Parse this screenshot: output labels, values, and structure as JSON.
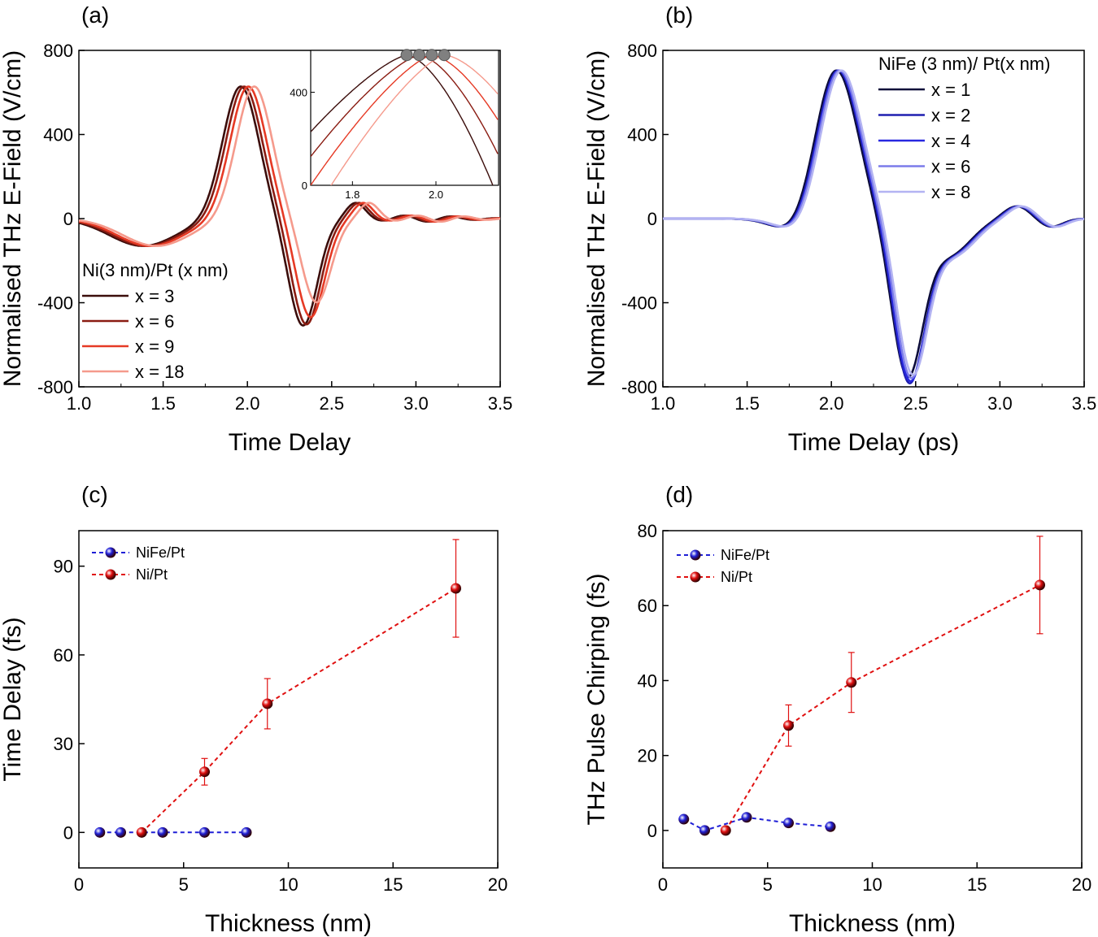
{
  "figure": {
    "panels": [
      "(a)",
      "(b)",
      "(c)",
      "(d)"
    ]
  },
  "chart_data": [
    {
      "id": "a",
      "type": "line",
      "panel_label": "(a)",
      "xlabel": "Time Delay",
      "ylabel": "Normalised THz E-Field (V/cm)",
      "xlim": [
        1.0,
        3.5
      ],
      "ylim": [
        -800,
        800
      ],
      "xticks": [
        "1.0",
        "1.5",
        "2.0",
        "2.5",
        "3.0",
        "3.5"
      ],
      "yticks": [
        "-800",
        "-400",
        "0",
        "400",
        "800"
      ],
      "legend_title": "Ni(3 nm)/Pt (x nm)",
      "legend_position": "bottom-left",
      "series": [
        {
          "name": "x = 3",
          "color": "#3b0d0b",
          "shift": 0.0,
          "peak": 600,
          "trough": -510
        },
        {
          "name": "x = 6",
          "color": "#8a1c12",
          "shift": 0.02,
          "peak": 600,
          "trough": -505
        },
        {
          "name": "x = 9",
          "color": "#e63a25",
          "shift": 0.045,
          "peak": 600,
          "trough": -470
        },
        {
          "name": "x = 18",
          "color": "#f59a8c",
          "shift": 0.08,
          "peak": 600,
          "trough": -400
        }
      ],
      "inset": {
        "xlim": [
          1.7,
          2.15
        ],
        "ylim": [
          0,
          580
        ],
        "xticks": [
          "1.8",
          "2.0"
        ],
        "yticks": [
          "0",
          "400"
        ],
        "peak_markers_x": [
          1.93,
          1.96,
          1.99,
          2.02
        ],
        "peak_marker_color": "#808080"
      }
    },
    {
      "id": "b",
      "type": "line",
      "panel_label": "(b)",
      "xlabel": "Time Delay (ps)",
      "ylabel": "Normalised THz E-Field (V/cm)",
      "xlim": [
        1.0,
        3.5
      ],
      "ylim": [
        -800,
        800
      ],
      "xticks": [
        "1.0",
        "1.5",
        "2.0",
        "2.5",
        "3.0",
        "3.5"
      ],
      "yticks": [
        "-800",
        "-400",
        "0",
        "400",
        "800"
      ],
      "legend_title": "NiFe (3 nm)/ Pt(x nm)",
      "legend_position": "top-right",
      "series": [
        {
          "name": "x = 1",
          "color": "#0b0b3a",
          "shift": 0.0,
          "trough": -730
        },
        {
          "name": "x = 2",
          "color": "#1f1fb0",
          "shift": 0.01,
          "trough": -760
        },
        {
          "name": "x = 4",
          "color": "#2828e0",
          "shift": 0.015,
          "trough": -750
        },
        {
          "name": "x = 6",
          "color": "#7b7bea",
          "shift": 0.02,
          "trough": -735
        },
        {
          "name": "x = 8",
          "color": "#b3b3f2",
          "shift": 0.03,
          "trough": -720
        }
      ]
    },
    {
      "id": "c",
      "type": "scatter",
      "panel_label": "(c)",
      "xlabel": "Thickness (nm)",
      "ylabel": "Time Delay (fs)",
      "xlim": [
        0,
        20
      ],
      "ylim": [
        -12,
        102
      ],
      "xticks": [
        "0",
        "5",
        "10",
        "15",
        "20"
      ],
      "yticks": [
        "0",
        "30",
        "60",
        "90"
      ],
      "legend_position": "top-left",
      "series": [
        {
          "name": "NiFe/Pt",
          "color": "#1f1fd6",
          "x": [
            1,
            2,
            4,
            6,
            8
          ],
          "y": [
            0,
            0,
            0,
            0,
            0
          ],
          "err": [
            0,
            0,
            0,
            0,
            0
          ]
        },
        {
          "name": "Ni/Pt",
          "color": "#e01010",
          "x": [
            3,
            6,
            9,
            18
          ],
          "y": [
            0,
            20.5,
            43.5,
            82.5
          ],
          "err": [
            0,
            4.5,
            8.5,
            16.5
          ]
        }
      ]
    },
    {
      "id": "d",
      "type": "scatter",
      "panel_label": "(d)",
      "xlabel": "Thickness (nm)",
      "ylabel": "THz Pulse Chirping (fs)",
      "xlim": [
        0,
        20
      ],
      "ylim": [
        -10,
        80
      ],
      "xticks": [
        "0",
        "5",
        "10",
        "15",
        "20"
      ],
      "yticks": [
        "0",
        "20",
        "40",
        "60",
        "80"
      ],
      "legend_position": "top-left",
      "series": [
        {
          "name": "NiFe/Pt",
          "color": "#1f1fd6",
          "x": [
            1,
            2,
            4,
            6,
            8
          ],
          "y": [
            3,
            0,
            3.5,
            2,
            1
          ],
          "err": [
            0,
            0,
            0,
            0,
            0
          ]
        },
        {
          "name": "Ni/Pt",
          "color": "#e01010",
          "x": [
            3,
            6,
            9,
            18
          ],
          "y": [
            0,
            28,
            39.5,
            65.5
          ],
          "err": [
            0,
            5.5,
            8,
            13
          ]
        }
      ]
    }
  ]
}
